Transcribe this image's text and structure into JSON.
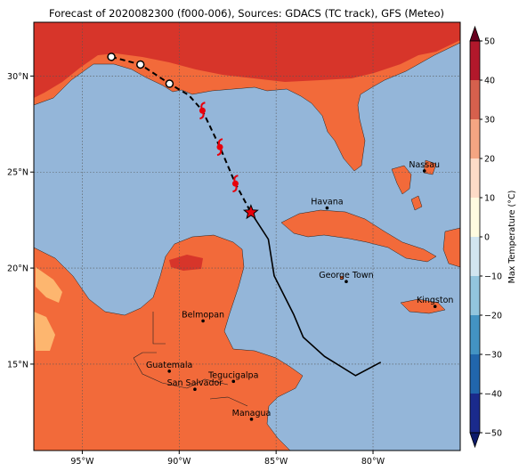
{
  "figure": {
    "title": "Forecast of 2020082300 (f000-006), Sources: GDACS (TC track), GFS (Meteo)"
  },
  "map": {
    "lon_range": [
      -97.5,
      -75.5
    ],
    "lat_range": [
      10.5,
      32.8
    ],
    "lon_ticks": [
      {
        "value": -95,
        "label": "95°W"
      },
      {
        "value": -90,
        "label": "90°W"
      },
      {
        "value": -85,
        "label": "85°W"
      },
      {
        "value": -80,
        "label": "80°W"
      }
    ],
    "lat_ticks": [
      {
        "value": 15,
        "label": "15°N"
      },
      {
        "value": 20,
        "label": "20°N"
      },
      {
        "value": 25,
        "label": "25°N"
      },
      {
        "value": 30,
        "label": "30°N"
      }
    ],
    "ocean_color": "#94b6d9",
    "land_color": "#f26a3a",
    "hot_color": "#d7352a",
    "warm_color": "#fdb66f",
    "cities": [
      {
        "name": "Havana",
        "lon": -82.37,
        "lat": 23.13
      },
      {
        "name": "Nassau",
        "lon": -77.35,
        "lat": 25.06
      },
      {
        "name": "George Town",
        "lon": -81.38,
        "lat": 19.3
      },
      {
        "name": "Kingston",
        "lon": -76.8,
        "lat": 18.0
      },
      {
        "name": "Belmopan",
        "lon": -88.77,
        "lat": 17.25
      },
      {
        "name": "Guatemala",
        "lon": -90.51,
        "lat": 14.63
      },
      {
        "name": "Tegucigalpa",
        "lon": -87.2,
        "lat": 14.1
      },
      {
        "name": "San Salvador",
        "lon": -89.19,
        "lat": 13.69
      },
      {
        "name": "Managua",
        "lon": -86.27,
        "lat": 12.13
      }
    ]
  },
  "chart_data": {
    "type": "map",
    "forecast_track": [
      {
        "lon": -93.5,
        "lat": 31.0,
        "marker": "circle"
      },
      {
        "lon": -92.0,
        "lat": 30.6,
        "marker": "circle"
      },
      {
        "lon": -90.5,
        "lat": 29.6,
        "marker": "circle"
      },
      {
        "lon": -89.5,
        "lat": 29.0,
        "marker": "line"
      },
      {
        "lon": -88.8,
        "lat": 28.2,
        "marker": "hurricane"
      },
      {
        "lon": -87.9,
        "lat": 26.3,
        "marker": "hurricane"
      },
      {
        "lon": -87.1,
        "lat": 24.4,
        "marker": "hurricane"
      },
      {
        "lon": -86.3,
        "lat": 22.9,
        "marker": "star"
      }
    ],
    "observed_track": [
      {
        "lon": -86.3,
        "lat": 22.9
      },
      {
        "lon": -85.4,
        "lat": 21.5
      },
      {
        "lon": -85.1,
        "lat": 19.6
      },
      {
        "lon": -84.1,
        "lat": 17.6
      },
      {
        "lon": -83.6,
        "lat": 16.4
      },
      {
        "lon": -82.5,
        "lat": 15.4
      },
      {
        "lon": -80.9,
        "lat": 14.4
      },
      {
        "lon": -79.6,
        "lat": 15.1
      }
    ]
  },
  "colorbar": {
    "label": "Max Temperature (°C)",
    "ticks": [
      "50",
      "40",
      "30",
      "20",
      "10",
      "0",
      "−10",
      "−20",
      "−30",
      "−40",
      "−50"
    ],
    "colors": [
      "#67001f",
      "#b2182b",
      "#d6604d",
      "#f4a582",
      "#fddbc7",
      "#fffbe0",
      "#d1e5f0",
      "#92c5de",
      "#4393c3",
      "#2166ac",
      "#1a2a8c"
    ]
  }
}
